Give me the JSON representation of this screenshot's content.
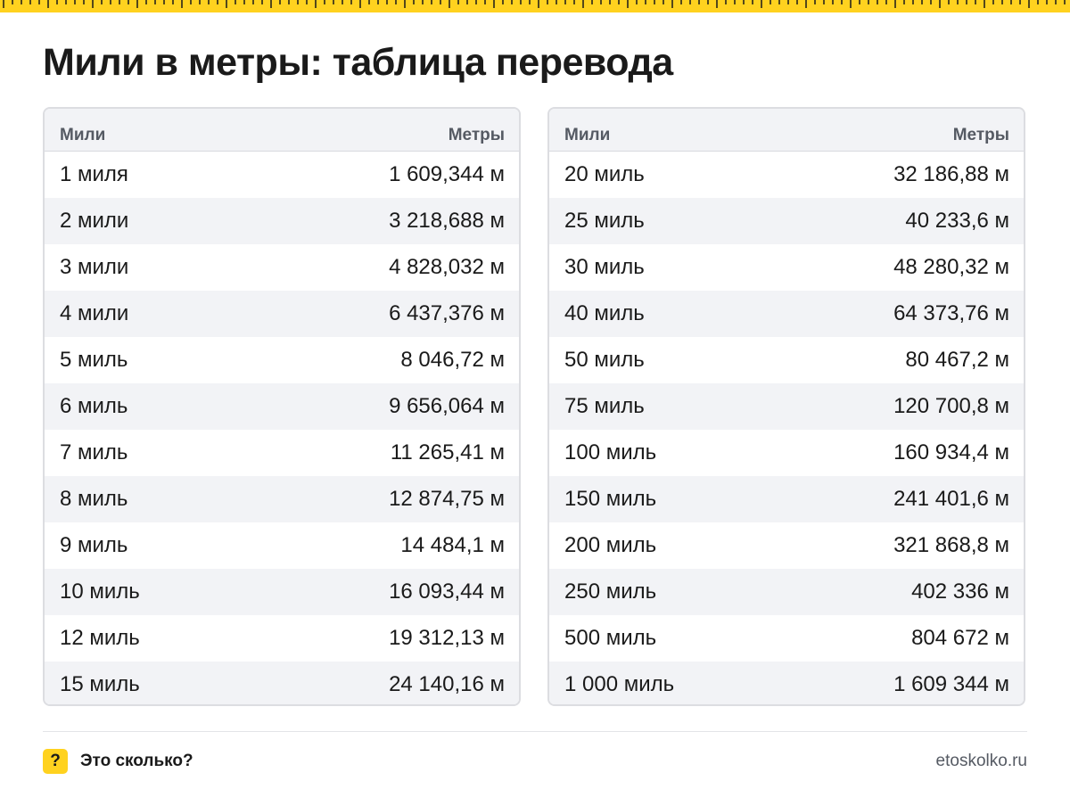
{
  "title": "Мили в метры: таблица перевода",
  "colors": {
    "accent": "#ffd21f",
    "header_bg": "#f2f3f6",
    "text": "#1a1a1a"
  },
  "tables": [
    {
      "header": {
        "col1": "Мили",
        "col2": "Метры"
      },
      "rows": [
        {
          "miles": "1 миля",
          "meters": "1 609,344 м"
        },
        {
          "miles": "2 мили",
          "meters": "3 218,688 м"
        },
        {
          "miles": "3 мили",
          "meters": "4 828,032 м"
        },
        {
          "miles": "4 мили",
          "meters": "6 437,376 м"
        },
        {
          "miles": "5 миль",
          "meters": "8 046,72 м"
        },
        {
          "miles": "6 миль",
          "meters": "9 656,064 м"
        },
        {
          "miles": "7 миль",
          "meters": "11 265,41 м"
        },
        {
          "miles": "8 миль",
          "meters": "12 874,75 м"
        },
        {
          "miles": "9 миль",
          "meters": "14 484,1 м"
        },
        {
          "miles": "10 миль",
          "meters": "16 093,44 м"
        },
        {
          "miles": "12 миль",
          "meters": "19 312,13 м"
        },
        {
          "miles": "15 миль",
          "meters": "24 140,16 м"
        }
      ]
    },
    {
      "header": {
        "col1": "Мили",
        "col2": "Метры"
      },
      "rows": [
        {
          "miles": "20 миль",
          "meters": "32 186,88 м"
        },
        {
          "miles": "25 миль",
          "meters": "40 233,6 м"
        },
        {
          "miles": "30 миль",
          "meters": "48 280,32 м"
        },
        {
          "miles": "40 миль",
          "meters": "64 373,76 м"
        },
        {
          "miles": "50 миль",
          "meters": "80 467,2 м"
        },
        {
          "miles": "75 миль",
          "meters": "120 700,8 м"
        },
        {
          "miles": "100 миль",
          "meters": "160 934,4 м"
        },
        {
          "miles": "150 миль",
          "meters": "241 401,6 м"
        },
        {
          "miles": "200 миль",
          "meters": "321 868,8 м"
        },
        {
          "miles": "250 миль",
          "meters": "402 336 м"
        },
        {
          "miles": "500 миль",
          "meters": "804 672 м"
        },
        {
          "miles": "1 000 миль",
          "meters": "1 609 344 м"
        }
      ]
    }
  ],
  "footer": {
    "badge": "?",
    "brand": "Это сколько?",
    "site": "etoskolko.ru"
  }
}
